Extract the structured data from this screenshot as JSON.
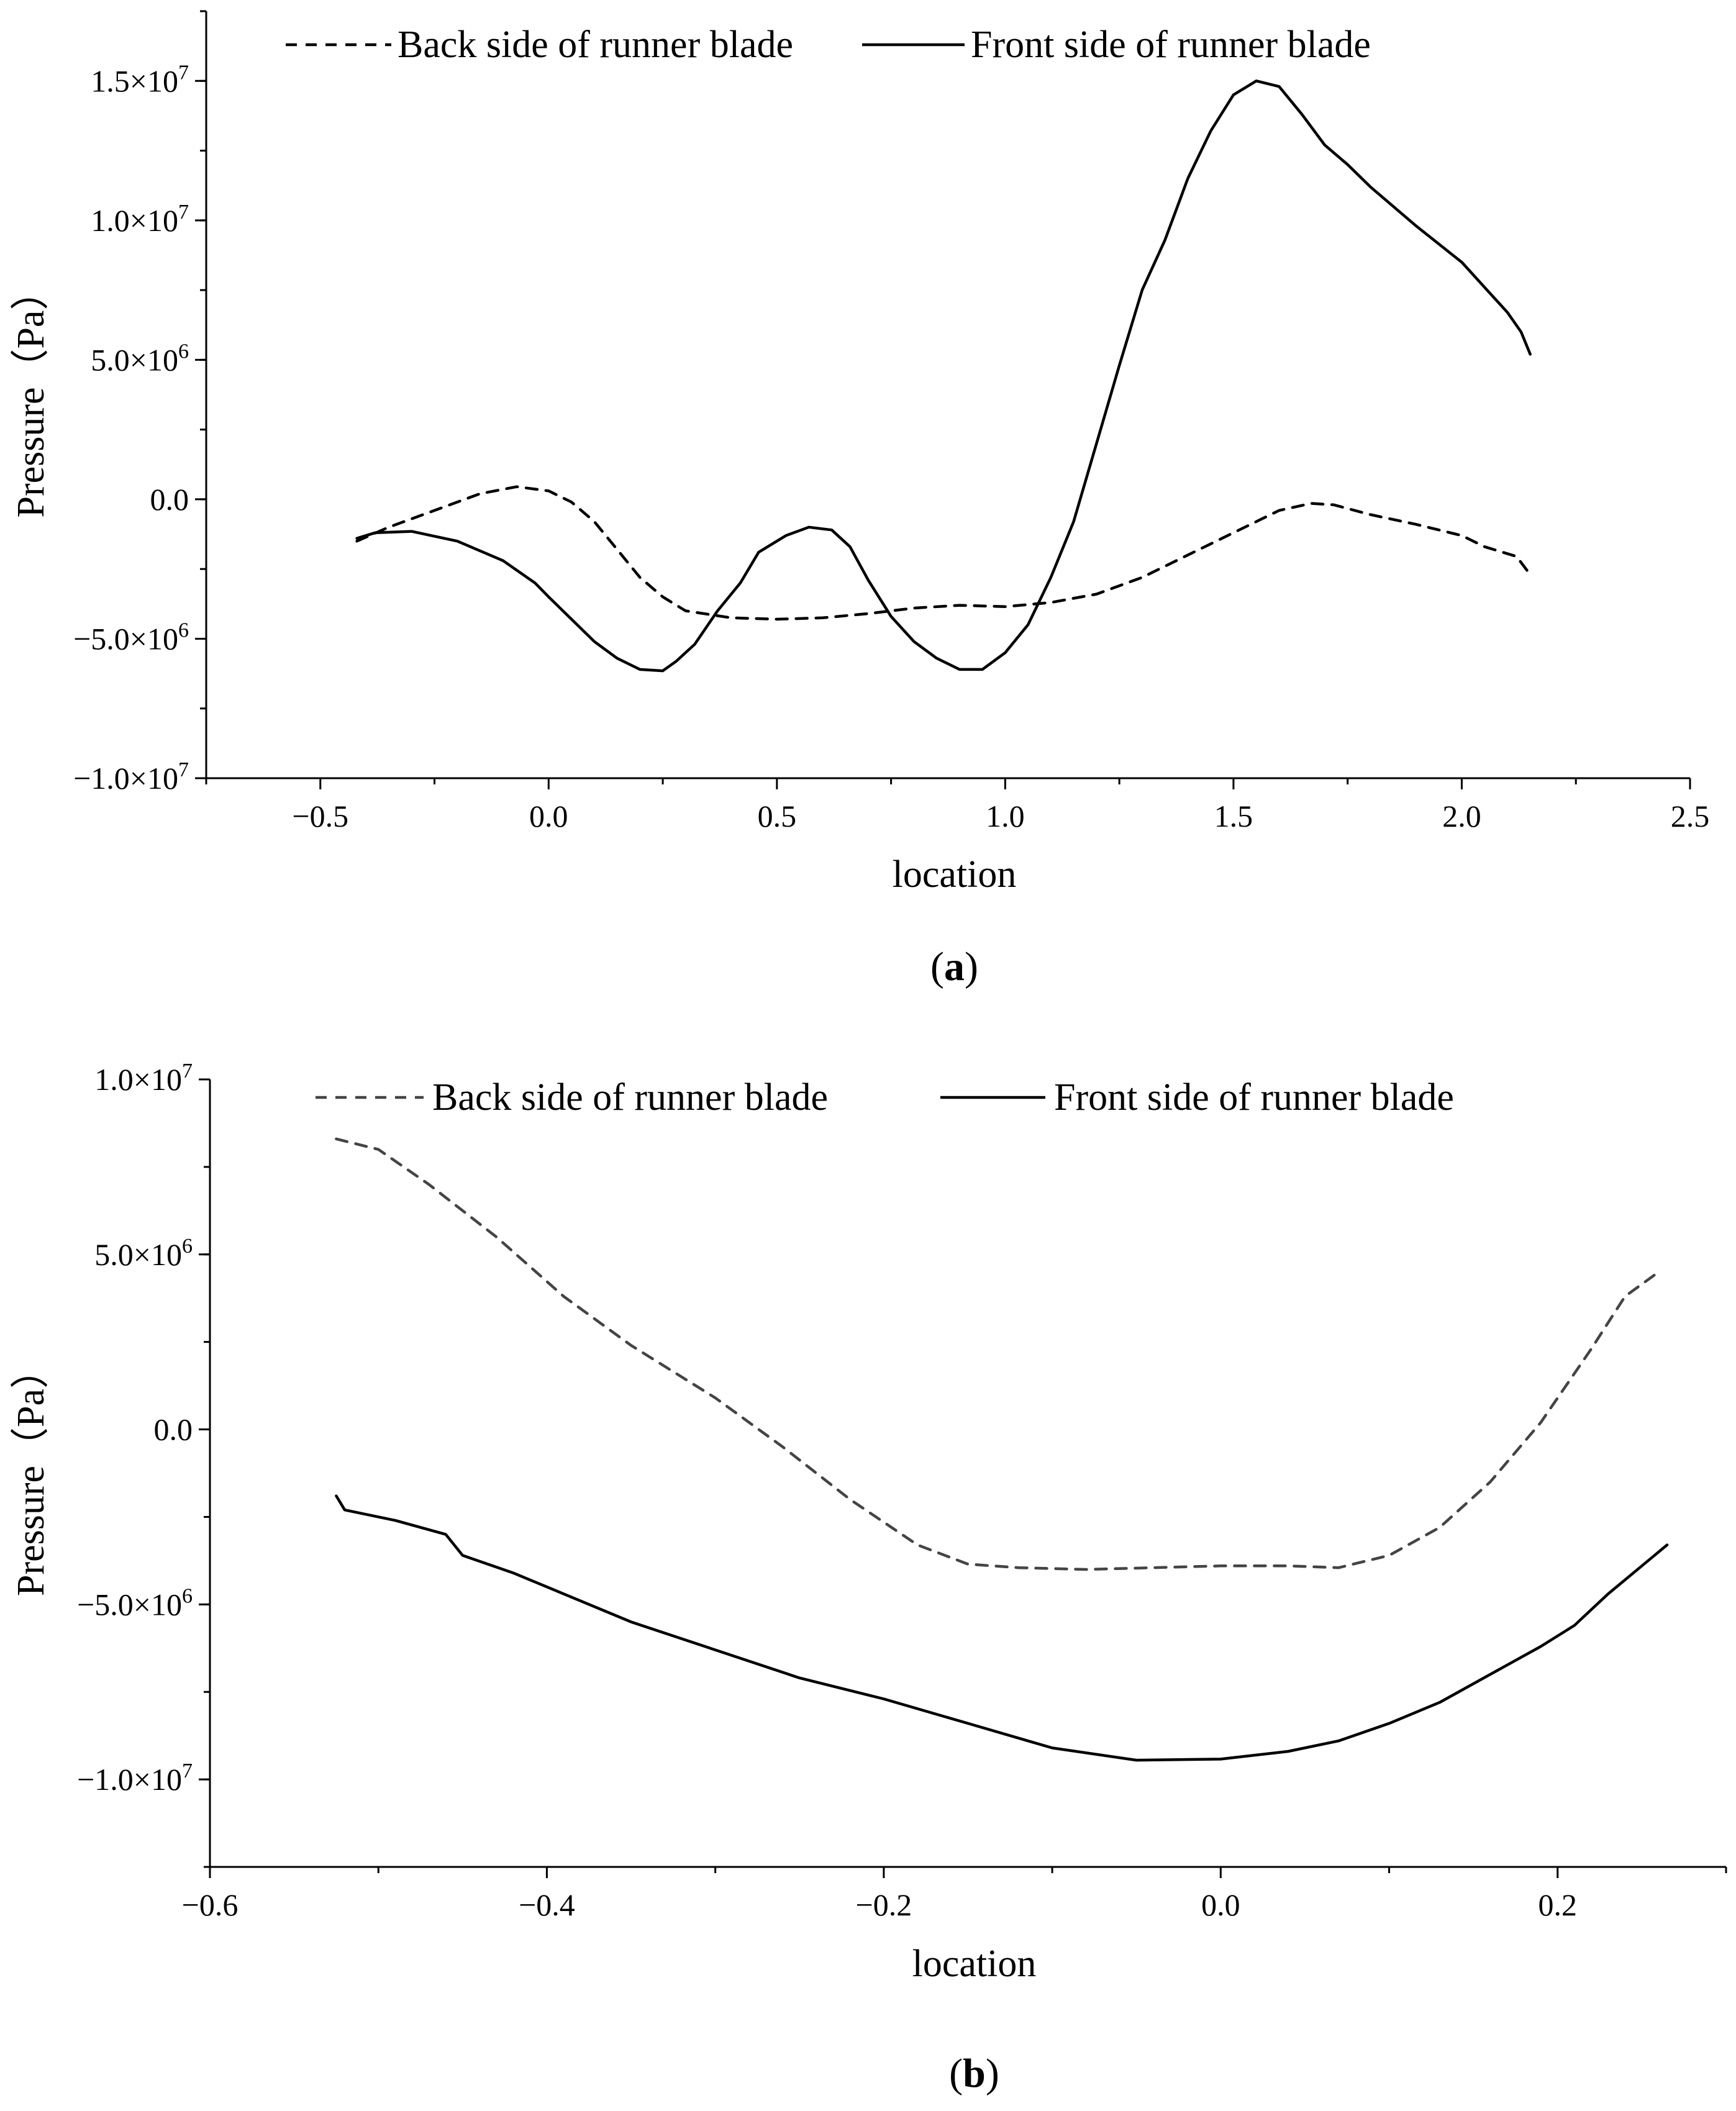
{
  "chart_data": [
    {
      "panel_label": "a",
      "type": "line",
      "xlabel": "location",
      "ylabel": "Pressure（Pa）",
      "xlim": [
        -0.75,
        2.5
      ],
      "ylim": [
        -10000000,
        17500000
      ],
      "x_ticks": [
        -0.5,
        0.0,
        0.5,
        1.0,
        1.5,
        2.0,
        2.5
      ],
      "x_tick_labels": [
        "−0.5",
        "0.0",
        "0.5",
        "1.0",
        "1.5",
        "2.0",
        "2.5"
      ],
      "y_ticks": [
        -10000000,
        -5000000,
        0,
        5000000,
        10000000,
        15000000
      ],
      "y_tick_labels": [
        {
          "mant": "−1.0×10",
          "exp": "7"
        },
        {
          "mant": "−5.0×10",
          "exp": "6"
        },
        {
          "mant": "0.0",
          "exp": ""
        },
        {
          "mant": "5.0×10",
          "exp": "6"
        },
        {
          "mant": "1.0×10",
          "exp": "7"
        },
        {
          "mant": "1.5×10",
          "exp": "7"
        }
      ],
      "grid": false,
      "legend_position": "top",
      "series": [
        {
          "name": "Back side of runner blade",
          "style": "dashed",
          "color": "#000000",
          "points": [
            [
              -0.42,
              -1500000
            ],
            [
              -0.35,
              -1000000
            ],
            [
              -0.25,
              -400000
            ],
            [
              -0.15,
              200000
            ],
            [
              -0.07,
              450000
            ],
            [
              0.0,
              300000
            ],
            [
              0.05,
              -100000
            ],
            [
              0.1,
              -800000
            ],
            [
              0.15,
              -1800000
            ],
            [
              0.2,
              -2800000
            ],
            [
              0.25,
              -3500000
            ],
            [
              0.3,
              -4000000
            ],
            [
              0.4,
              -4250000
            ],
            [
              0.5,
              -4300000
            ],
            [
              0.6,
              -4250000
            ],
            [
              0.7,
              -4100000
            ],
            [
              0.8,
              -3900000
            ],
            [
              0.9,
              -3800000
            ],
            [
              1.0,
              -3850000
            ],
            [
              1.1,
              -3700000
            ],
            [
              1.2,
              -3400000
            ],
            [
              1.3,
              -2800000
            ],
            [
              1.4,
              -2000000
            ],
            [
              1.5,
              -1200000
            ],
            [
              1.6,
              -400000
            ],
            [
              1.67,
              -150000
            ],
            [
              1.72,
              -200000
            ],
            [
              1.8,
              -550000
            ],
            [
              1.9,
              -900000
            ],
            [
              2.0,
              -1300000
            ],
            [
              2.05,
              -1700000
            ],
            [
              2.12,
              -2050000
            ],
            [
              2.15,
              -2700000
            ]
          ]
        },
        {
          "name": "Front side of runner blade",
          "style": "solid",
          "color": "#000000",
          "points": [
            [
              -0.42,
              -1400000
            ],
            [
              -0.38,
              -1200000
            ],
            [
              -0.3,
              -1150000
            ],
            [
              -0.2,
              -1500000
            ],
            [
              -0.1,
              -2200000
            ],
            [
              -0.03,
              -3000000
            ],
            [
              0.0,
              -3500000
            ],
            [
              0.05,
              -4300000
            ],
            [
              0.1,
              -5100000
            ],
            [
              0.15,
              -5700000
            ],
            [
              0.2,
              -6100000
            ],
            [
              0.25,
              -6150000
            ],
            [
              0.28,
              -5800000
            ],
            [
              0.32,
              -5200000
            ],
            [
              0.37,
              -4000000
            ],
            [
              0.42,
              -3000000
            ],
            [
              0.46,
              -1900000
            ],
            [
              0.52,
              -1300000
            ],
            [
              0.57,
              -1000000
            ],
            [
              0.62,
              -1100000
            ],
            [
              0.66,
              -1700000
            ],
            [
              0.7,
              -2900000
            ],
            [
              0.75,
              -4200000
            ],
            [
              0.8,
              -5100000
            ],
            [
              0.85,
              -5700000
            ],
            [
              0.9,
              -6100000
            ],
            [
              0.95,
              -6100000
            ],
            [
              1.0,
              -5500000
            ],
            [
              1.05,
              -4500000
            ],
            [
              1.1,
              -2800000
            ],
            [
              1.15,
              -800000
            ],
            [
              1.2,
              2000000
            ],
            [
              1.25,
              4800000
            ],
            [
              1.3,
              7500000
            ],
            [
              1.35,
              9300000
            ],
            [
              1.4,
              11500000
            ],
            [
              1.45,
              13200000
            ],
            [
              1.5,
              14500000
            ],
            [
              1.55,
              15000000
            ],
            [
              1.6,
              14800000
            ],
            [
              1.65,
              13800000
            ],
            [
              1.7,
              12700000
            ],
            [
              1.75,
              12000000
            ],
            [
              1.8,
              11200000
            ],
            [
              1.9,
              9800000
            ],
            [
              2.0,
              8500000
            ],
            [
              2.05,
              7600000
            ],
            [
              2.1,
              6700000
            ],
            [
              2.13,
              6000000
            ],
            [
              2.15,
              5200000
            ]
          ]
        }
      ]
    },
    {
      "panel_label": "b",
      "type": "line",
      "xlabel": "location",
      "ylabel": "Pressure（Pa）",
      "xlim": [
        -0.6,
        0.3
      ],
      "ylim": [
        -12500000,
        10000000
      ],
      "x_ticks": [
        -0.6,
        -0.4,
        -0.2,
        0.0,
        0.2
      ],
      "x_tick_labels": [
        "−0.6",
        "−0.4",
        "−0.2",
        "0.0",
        "0.2"
      ],
      "y_ticks": [
        -10000000,
        -5000000,
        0,
        5000000,
        10000000
      ],
      "y_tick_labels": [
        {
          "mant": "−1.0×10",
          "exp": "7"
        },
        {
          "mant": "−5.0×10",
          "exp": "6"
        },
        {
          "mant": "0.0",
          "exp": ""
        },
        {
          "mant": "5.0×10",
          "exp": "6"
        },
        {
          "mant": "1.0×10",
          "exp": "7"
        }
      ],
      "grid": false,
      "legend_position": "top",
      "series": [
        {
          "name": "Back side of runner blade",
          "style": "dashed",
          "color": "#444444",
          "points": [
            [
              -0.525,
              8300000
            ],
            [
              -0.5,
              8000000
            ],
            [
              -0.47,
              7000000
            ],
            [
              -0.43,
              5500000
            ],
            [
              -0.39,
              3800000
            ],
            [
              -0.35,
              2400000
            ],
            [
              -0.3,
              900000
            ],
            [
              -0.26,
              -500000
            ],
            [
              -0.22,
              -2000000
            ],
            [
              -0.18,
              -3300000
            ],
            [
              -0.15,
              -3850000
            ],
            [
              -0.12,
              -3950000
            ],
            [
              -0.08,
              -4000000
            ],
            [
              -0.04,
              -3950000
            ],
            [
              0.0,
              -3900000
            ],
            [
              0.04,
              -3900000
            ],
            [
              0.07,
              -3950000
            ],
            [
              0.1,
              -3600000
            ],
            [
              0.13,
              -2800000
            ],
            [
              0.16,
              -1500000
            ],
            [
              0.19,
              200000
            ],
            [
              0.22,
              2300000
            ],
            [
              0.24,
              3800000
            ],
            [
              0.26,
              4500000
            ]
          ]
        },
        {
          "name": "Front side of runner blade",
          "style": "solid",
          "color": "#000000",
          "points": [
            [
              -0.525,
              -1900000
            ],
            [
              -0.52,
              -2300000
            ],
            [
              -0.49,
              -2600000
            ],
            [
              -0.46,
              -3000000
            ],
            [
              -0.45,
              -3600000
            ],
            [
              -0.42,
              -4100000
            ],
            [
              -0.38,
              -4900000
            ],
            [
              -0.35,
              -5500000
            ],
            [
              -0.3,
              -6300000
            ],
            [
              -0.25,
              -7100000
            ],
            [
              -0.2,
              -7700000
            ],
            [
              -0.15,
              -8400000
            ],
            [
              -0.1,
              -9100000
            ],
            [
              -0.05,
              -9450000
            ],
            [
              0.0,
              -9420000
            ],
            [
              0.04,
              -9200000
            ],
            [
              0.07,
              -8900000
            ],
            [
              0.1,
              -8400000
            ],
            [
              0.13,
              -7800000
            ],
            [
              0.16,
              -7000000
            ],
            [
              0.19,
              -6200000
            ],
            [
              0.21,
              -5600000
            ],
            [
              0.23,
              -4700000
            ],
            [
              0.25,
              -3900000
            ],
            [
              0.265,
              -3300000
            ]
          ]
        }
      ]
    }
  ]
}
